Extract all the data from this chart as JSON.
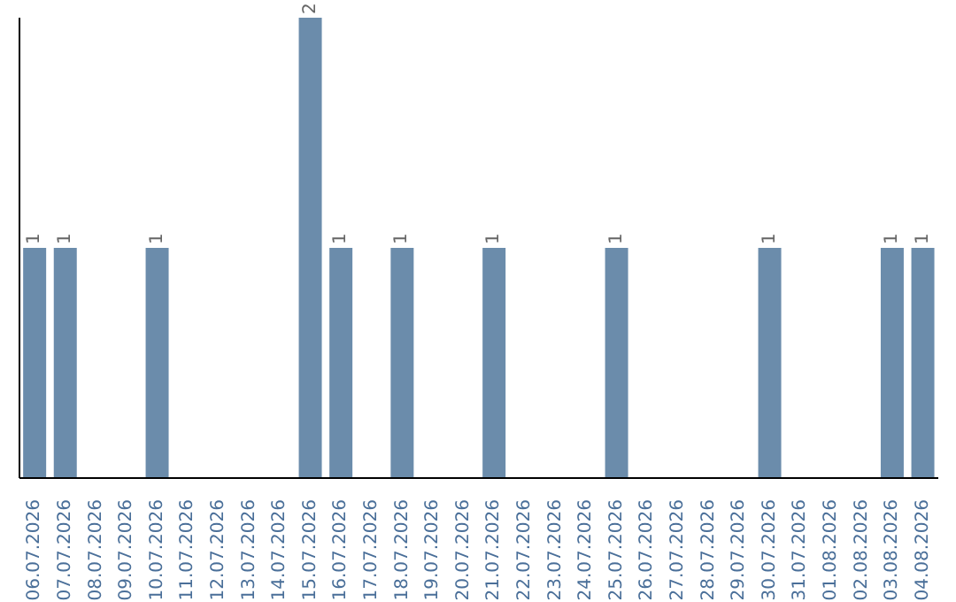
{
  "chart_data": {
    "type": "bar",
    "categories": [
      "06.07.2026",
      "07.07.2026",
      "08.07.2026",
      "09.07.2026",
      "10.07.2026",
      "11.07.2026",
      "12.07.2026",
      "13.07.2026",
      "14.07.2026",
      "15.07.2026",
      "16.07.2026",
      "17.07.2026",
      "18.07.2026",
      "19.07.2026",
      "20.07.2026",
      "21.07.2026",
      "22.07.2026",
      "23.07.2026",
      "24.07.2026",
      "25.07.2026",
      "26.07.2026",
      "27.07.2026",
      "28.07.2026",
      "29.07.2026",
      "30.07.2026",
      "31.07.2026",
      "01.08.2026",
      "02.08.2026",
      "03.08.2026",
      "04.08.2026"
    ],
    "values": [
      1,
      1,
      0,
      0,
      1,
      0,
      0,
      0,
      0,
      2,
      1,
      0,
      1,
      0,
      0,
      1,
      0,
      0,
      0,
      1,
      0,
      0,
      0,
      0,
      1,
      0,
      0,
      0,
      1,
      1
    ],
    "value_labels": [
      "1",
      "1",
      null,
      null,
      "1",
      null,
      null,
      null,
      null,
      "2",
      "1",
      null,
      "1",
      null,
      null,
      "1",
      null,
      null,
      null,
      "1",
      null,
      null,
      null,
      null,
      "1",
      null,
      null,
      null,
      "1",
      "1"
    ],
    "color": "#6b8cab"
  }
}
